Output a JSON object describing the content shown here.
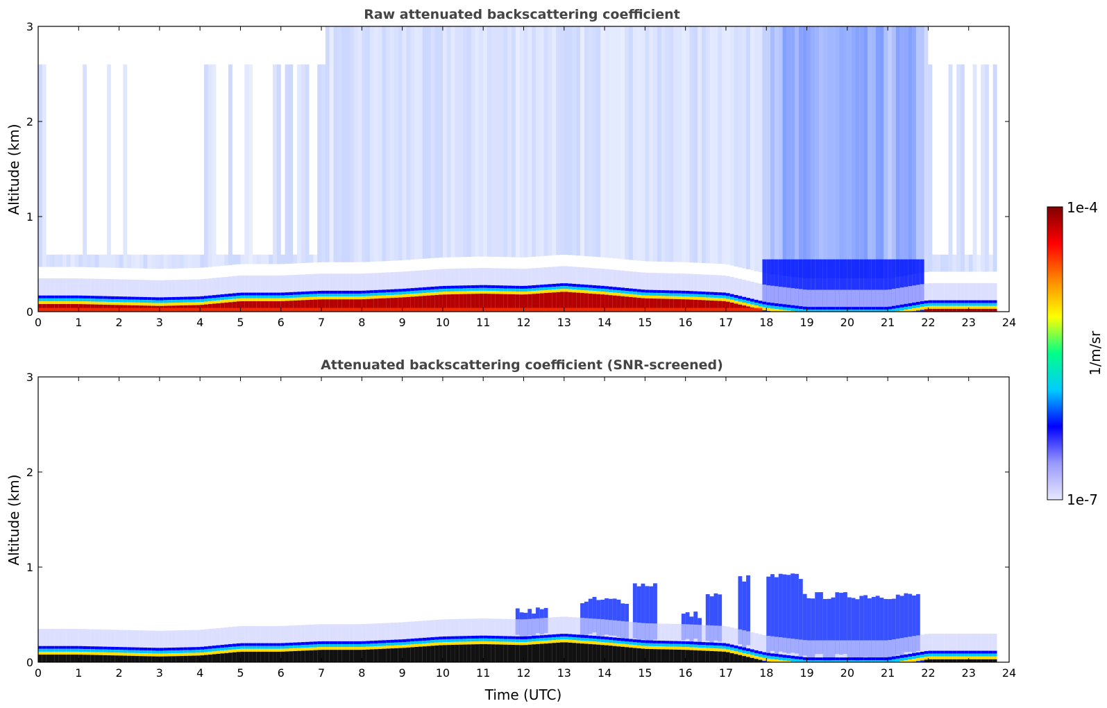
{
  "chart_data": [
    {
      "type": "heatmap",
      "title": "Raw attenuated backscattering coefficient",
      "xlabel": "",
      "ylabel": "Altitude (km)",
      "xlim": [
        0,
        24
      ],
      "ylim": [
        0,
        3
      ],
      "x_ticks": [
        0,
        1,
        2,
        3,
        4,
        5,
        6,
        7,
        8,
        9,
        10,
        11,
        12,
        13,
        14,
        15,
        16,
        17,
        18,
        19,
        20,
        21,
        22,
        23,
        24
      ],
      "y_ticks": [
        0,
        1,
        2,
        3
      ],
      "layer_top_km": [
        [
          0,
          0.17
        ],
        [
          1,
          0.17
        ],
        [
          2,
          0.16
        ],
        [
          3,
          0.15
        ],
        [
          4,
          0.16
        ],
        [
          5,
          0.2
        ],
        [
          6,
          0.2
        ],
        [
          7,
          0.22
        ],
        [
          8,
          0.22
        ],
        [
          9,
          0.24
        ],
        [
          10,
          0.27
        ],
        [
          11,
          0.28
        ],
        [
          12,
          0.27
        ],
        [
          13,
          0.3
        ],
        [
          14,
          0.27
        ],
        [
          15,
          0.23
        ],
        [
          16,
          0.22
        ],
        [
          17,
          0.2
        ],
        [
          18,
          0.1
        ],
        [
          19,
          0.05
        ],
        [
          20,
          0.05
        ],
        [
          21,
          0.05
        ],
        [
          22,
          0.12
        ],
        [
          23,
          0.12
        ],
        [
          23.7,
          0.12
        ]
      ],
      "data_end_hour": 23.7
    },
    {
      "type": "heatmap",
      "title": "Attenuated backscattering coefficient (SNR-screened)",
      "xlabel": "Time (UTC)",
      "ylabel": "Altitude (km)",
      "xlim": [
        0,
        24
      ],
      "ylim": [
        0,
        3
      ],
      "x_ticks": [
        0,
        1,
        2,
        3,
        4,
        5,
        6,
        7,
        8,
        9,
        10,
        11,
        12,
        13,
        14,
        15,
        16,
        17,
        18,
        19,
        20,
        21,
        22,
        23,
        24
      ],
      "y_ticks": [
        0,
        1,
        2,
        3
      ],
      "layer_top_km": [
        [
          0,
          0.17
        ],
        [
          1,
          0.17
        ],
        [
          2,
          0.16
        ],
        [
          3,
          0.15
        ],
        [
          4,
          0.16
        ],
        [
          5,
          0.2
        ],
        [
          6,
          0.2
        ],
        [
          7,
          0.22
        ],
        [
          8,
          0.22
        ],
        [
          9,
          0.24
        ],
        [
          10,
          0.27
        ],
        [
          11,
          0.28
        ],
        [
          12,
          0.27
        ],
        [
          13,
          0.3
        ],
        [
          14,
          0.27
        ],
        [
          15,
          0.23
        ],
        [
          16,
          0.22
        ],
        [
          17,
          0.2
        ],
        [
          18,
          0.1
        ],
        [
          19,
          0.05
        ],
        [
          20,
          0.05
        ],
        [
          21,
          0.05
        ],
        [
          22,
          0.12
        ],
        [
          23,
          0.12
        ],
        [
          23.7,
          0.12
        ]
      ],
      "cloud_tops_km": [
        {
          "start": 11.7,
          "end": 12.5,
          "top": 0.55
        },
        {
          "start": 13.3,
          "end": 14.5,
          "top": 0.65
        },
        {
          "start": 14.6,
          "end": 15.2,
          "top": 0.82
        },
        {
          "start": 15.8,
          "end": 16.3,
          "top": 0.5
        },
        {
          "start": 16.4,
          "end": 16.8,
          "top": 0.7
        },
        {
          "start": 17.2,
          "end": 17.5,
          "top": 0.88
        },
        {
          "start": 17.9,
          "end": 18.8,
          "top": 0.9
        },
        {
          "start": 18.8,
          "end": 21.8,
          "top": 0.7
        }
      ],
      "data_end_hour": 23.7
    }
  ],
  "colorbar": {
    "label": "1/m/sr",
    "min_label": "1e-7",
    "max_label": "1e-4",
    "scale": "log",
    "colors": [
      "#e8e8ff",
      "#9999ff",
      "#0000ff",
      "#00ccff",
      "#00ff88",
      "#ffff00",
      "#ff8800",
      "#ff0000",
      "#800000"
    ]
  }
}
